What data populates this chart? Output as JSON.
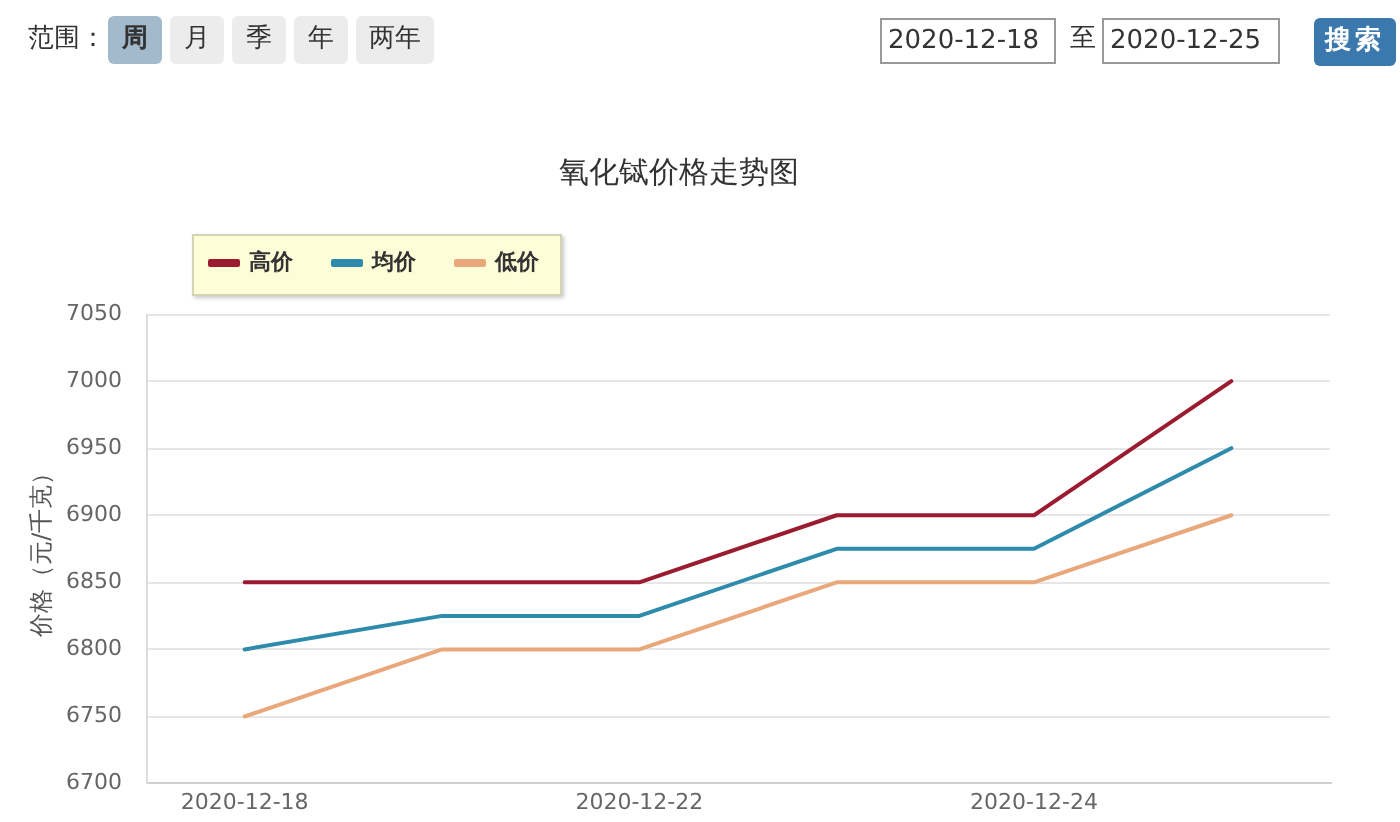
{
  "chart_data": {
    "type": "line",
    "title": "氧化铽价格走势图",
    "ylabel": "价格（元/千克）",
    "categories": [
      "2020-12-18",
      null,
      "2020-12-22",
      null,
      "2020-12-24",
      null
    ],
    "series": [
      {
        "name": "高价",
        "color": "#9b1b30",
        "values": [
          6850,
          6850,
          6850,
          6900,
          6900,
          7000
        ]
      },
      {
        "name": "均价",
        "color": "#2e8bab",
        "values": [
          6800,
          6825,
          6825,
          6875,
          6875,
          6950
        ]
      },
      {
        "name": "低价",
        "color": "#e9a87c",
        "values": [
          6750,
          6800,
          6800,
          6850,
          6850,
          6900
        ]
      }
    ],
    "ylim": [
      6700,
      7050
    ],
    "yticks": [
      6700,
      6750,
      6800,
      6850,
      6900,
      6950,
      7000,
      7050
    ],
    "grid": "y",
    "legend": "top left",
    "marker": "none",
    "line_style": "solid",
    "annotations": [
      "范围：",
      "周",
      "月",
      "季",
      "年",
      "两年",
      "2020-12-18",
      "至",
      "2020-12-25",
      "搜索"
    ]
  }
}
